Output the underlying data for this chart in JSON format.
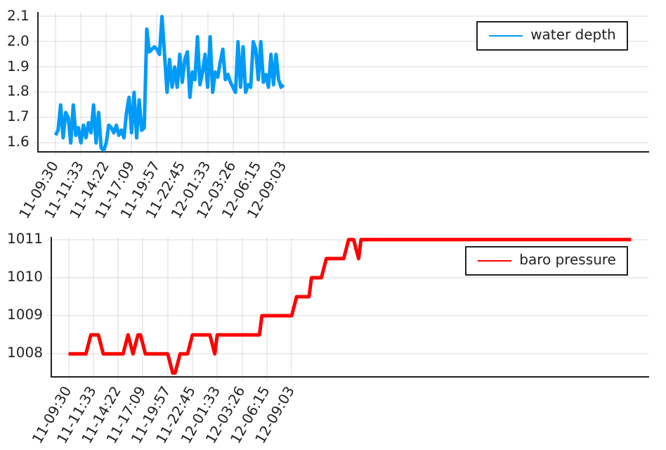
{
  "chart_data": [
    {
      "type": "line",
      "legend": "top right",
      "grid": true,
      "marker": "none",
      "line_style": "solid",
      "categories": [
        null,
        null,
        null,
        null,
        null,
        null,
        null,
        "11-09:30",
        null,
        null,
        null,
        null,
        null,
        null,
        null,
        null,
        null,
        "11-11:33",
        null,
        null,
        null,
        null,
        null,
        null,
        null,
        null,
        null,
        "11-14:22",
        null,
        null,
        null,
        null,
        null,
        null,
        null,
        null,
        null,
        "11-17:09",
        null,
        null,
        null,
        null,
        null,
        null,
        null,
        null,
        null,
        "11-19:57",
        null,
        null,
        null,
        null,
        null,
        null,
        null,
        null,
        null,
        "11-22:45",
        null,
        null,
        null,
        null,
        null,
        null,
        null,
        null,
        null,
        "12-01:33",
        null,
        null,
        null,
        null,
        null,
        null,
        null,
        null,
        null,
        "12-03:26",
        null,
        null,
        null,
        null,
        null,
        null,
        null,
        null,
        null,
        "12-06:15",
        null,
        null,
        null,
        null,
        null,
        null,
        null,
        null,
        null,
        "12-09:03",
        null,
        null,
        null,
        null,
        null,
        null,
        null,
        null,
        null,
        null,
        null,
        null,
        null,
        null,
        null,
        null,
        null,
        null,
        null,
        null,
        null,
        null,
        null,
        null,
        null,
        null,
        null,
        null,
        null,
        null,
        null,
        null,
        null,
        null,
        null,
        null,
        null,
        null,
        null,
        null,
        null,
        null,
        null,
        null,
        null,
        null,
        null,
        null,
        null,
        null,
        null,
        null,
        null,
        null,
        null,
        null,
        null,
        null,
        null,
        null,
        null,
        null,
        null,
        null,
        null,
        null,
        null,
        null,
        null,
        null,
        null,
        null,
        null,
        null,
        null,
        null,
        null,
        null,
        null,
        null,
        null,
        null,
        null,
        null,
        null,
        null,
        null,
        null,
        null,
        null,
        null,
        null,
        null,
        null,
        null,
        null,
        null,
        null,
        null,
        null,
        null,
        null,
        null,
        null,
        null,
        null,
        null,
        null,
        null,
        null,
        null,
        null,
        null,
        null,
        null,
        null,
        null,
        null,
        null,
        null,
        null,
        null,
        null,
        null,
        null,
        null,
        null,
        null,
        null,
        null,
        null,
        null,
        null,
        null,
        null,
        null,
        null,
        null,
        null,
        null,
        null,
        null,
        null,
        null
      ],
      "ylim": [
        1.565,
        2.115
      ],
      "yticks": [
        1.6,
        1.7,
        1.8,
        1.9,
        {
          "value": 2,
          "label": "2.0"
        },
        2.1
      ],
      "series": [
        {
          "name": "water depth",
          "color": "#009af9",
          "values": [
            null,
            null,
            null,
            null,
            null,
            null,
            null,
            1.63,
            1.65,
            1.75,
            1.62,
            1.72,
            1.7,
            1.6,
            1.75,
            1.63,
            1.66,
            1.6,
            1.67,
            1.62,
            1.68,
            1.64,
            1.75,
            1.6,
            1.72,
            1.58,
            1.57,
            1.6,
            1.67,
            1.66,
            1.64,
            1.67,
            1.63,
            1.65,
            1.62,
            1.72,
            1.78,
            1.64,
            1.8,
            1.62,
            1.77,
            1.65,
            1.66,
            2.05,
            1.96,
            1.97,
            1.98,
            1.97,
            1.95,
            2.1,
            1.95,
            1.8,
            1.93,
            1.82,
            1.9,
            1.82,
            1.95,
            1.84,
            1.93,
            1.96,
            1.78,
            1.88,
            1.85,
            2.02,
            1.83,
            1.88,
            1.95,
            1.82,
            2.02,
            1.8,
            1.88,
            1.86,
            1.92,
            1.97,
            1.85,
            1.87,
            1.84,
            1.82,
            1.8,
            2.0,
            1.82,
            1.98,
            1.8,
            1.83,
            1.82,
            2.0,
            1.97,
            1.85,
            2.0,
            1.84,
            1.87,
            1.82,
            1.95,
            1.83,
            1.95,
            1.85,
            1.82,
            1.83,
            null,
            null,
            null,
            null,
            null,
            null,
            null,
            null,
            null,
            null,
            null,
            null,
            null,
            null,
            null,
            null,
            null,
            null,
            null,
            null,
            null,
            null,
            null,
            null,
            null,
            null,
            null,
            null,
            null,
            null,
            null,
            null,
            null,
            null,
            null,
            null,
            null,
            null,
            null,
            null,
            null,
            null,
            null,
            null,
            null,
            null,
            null,
            null,
            null,
            null,
            null,
            null,
            null,
            null,
            null,
            null,
            null,
            null,
            null,
            null,
            null,
            null,
            null,
            null,
            null,
            null,
            null,
            null,
            null,
            null,
            null,
            null,
            null,
            null,
            null,
            null,
            null,
            null,
            null,
            null,
            null,
            null,
            null,
            null,
            null,
            null,
            null,
            null,
            null,
            null,
            null,
            null,
            null,
            null,
            null,
            null,
            null,
            null,
            null,
            null,
            null,
            null,
            null,
            null,
            null,
            null,
            null,
            null,
            null,
            null,
            null,
            null,
            null,
            null,
            null,
            null,
            null,
            null,
            null,
            null,
            null,
            null,
            null,
            null,
            null,
            null,
            null,
            null,
            null,
            null,
            null,
            null,
            null,
            null,
            null,
            null,
            null,
            null,
            null,
            null,
            null,
            null,
            null,
            null
          ]
        }
      ]
    },
    {
      "type": "line",
      "legend": "top right",
      "grid": true,
      "marker": "none",
      "line_style": "solid",
      "categories": [
        null,
        null,
        null,
        null,
        null,
        null,
        null,
        "11-09:30",
        null,
        null,
        null,
        null,
        null,
        null,
        null,
        null,
        null,
        "11-11:33",
        null,
        null,
        null,
        null,
        null,
        null,
        null,
        null,
        null,
        "11-14:22",
        null,
        null,
        null,
        null,
        null,
        null,
        null,
        null,
        null,
        "11-17:09",
        null,
        null,
        null,
        null,
        null,
        null,
        null,
        null,
        null,
        "11-19:57",
        null,
        null,
        null,
        null,
        null,
        null,
        null,
        null,
        null,
        "11-22:45",
        null,
        null,
        null,
        null,
        null,
        null,
        null,
        null,
        null,
        "12-01:33",
        null,
        null,
        null,
        null,
        null,
        null,
        null,
        null,
        null,
        "12-03:26",
        null,
        null,
        null,
        null,
        null,
        null,
        null,
        null,
        null,
        "12-06:15",
        null,
        null,
        null,
        null,
        null,
        null,
        null,
        null,
        null,
        "12-09:03",
        null,
        null,
        null,
        null,
        null,
        null,
        null,
        null,
        null,
        null,
        null,
        null,
        null,
        null,
        null,
        null,
        null,
        null,
        null,
        null,
        null,
        null,
        null,
        null,
        null,
        null,
        null,
        null,
        null,
        null,
        null,
        null,
        null,
        null,
        null,
        null,
        null,
        null,
        null,
        null,
        null,
        null,
        null,
        null,
        null,
        null,
        null,
        null,
        null,
        null,
        null,
        null,
        null,
        null,
        null,
        null,
        null,
        null,
        null,
        null,
        null,
        null,
        null,
        null,
        null,
        null,
        null,
        null,
        null,
        null,
        null,
        null,
        null,
        null,
        null,
        null,
        null,
        null,
        null,
        null,
        null,
        null,
        null,
        null,
        null,
        null,
        null,
        null,
        null,
        null,
        null,
        null,
        null,
        null,
        null,
        null,
        null,
        null,
        null,
        null,
        null,
        null,
        null,
        null,
        null,
        null,
        null,
        null,
        null,
        null,
        null,
        null,
        null,
        null,
        null,
        null,
        null,
        null,
        null,
        null,
        null,
        null,
        null,
        null,
        null,
        null,
        null,
        null,
        null,
        null,
        null,
        null,
        null,
        null,
        null,
        null,
        null,
        null,
        null,
        null,
        null,
        null,
        null,
        null
      ],
      "ylim": [
        1007.4,
        1011.05
      ],
      "yticks": [
        1008,
        1009,
        1010,
        1011
      ],
      "series": [
        {
          "name": "baro pressure",
          "color": "#ff0000",
          "values": [
            null,
            null,
            null,
            null,
            null,
            null,
            null,
            1008,
            1008,
            1008,
            1008,
            1008,
            1008,
            1008,
            1008,
            1008.25,
            1008.5,
            1008.5,
            1008.5,
            1008.5,
            1008.25,
            1008,
            1008,
            1008,
            1008,
            1008,
            1008,
            1008,
            1008,
            1008,
            1008.25,
            1008.5,
            1008.25,
            1008,
            1008.25,
            1008.5,
            1008.5,
            1008.25,
            1008,
            1008,
            1008,
            1008,
            1008,
            1008,
            1008,
            1008,
            1008,
            1008,
            1007.75,
            1007.5,
            1007.5,
            1007.75,
            1008,
            1008,
            1008,
            1008,
            1008.25,
            1008.5,
            1008.5,
            1008.5,
            1008.5,
            1008.5,
            1008.5,
            1008.5,
            1008.5,
            1008.25,
            1008,
            1008.5,
            1008.5,
            1008.5,
            1008.5,
            1008.5,
            1008.5,
            1008.5,
            1008.5,
            1008.5,
            1008.5,
            1008.5,
            1008.5,
            1008.5,
            1008.5,
            1008.5,
            1008.5,
            1008.5,
            1008.5,
            1009,
            1009,
            1009,
            1009,
            1009,
            1009,
            1009,
            1009,
            1009,
            1009,
            1009,
            1009,
            1009,
            1009.25,
            1009.5,
            1009.5,
            1009.5,
            1009.5,
            1009.5,
            1009.5,
            1010,
            1010,
            1010,
            1010,
            1010,
            1010.25,
            1010.5,
            1010.5,
            1010.5,
            1010.5,
            1010.5,
            1010.5,
            1010.5,
            1010.5,
            1010.75,
            1011,
            1011,
            1011,
            1010.75,
            1010.5,
            1011,
            1011,
            1011,
            1011,
            1011,
            1011,
            1011,
            1011,
            1011,
            1011,
            1011,
            1011,
            1011,
            1011,
            1011,
            1011,
            1011,
            1011,
            1011,
            1011,
            1011,
            1011,
            1011,
            1011,
            1011,
            1011,
            1011,
            1011,
            1011,
            1011,
            1011,
            1011,
            1011,
            1011,
            1011,
            1011,
            1011,
            1011,
            1011,
            1011,
            1011,
            1011,
            1011,
            1011,
            1011,
            1011,
            1011,
            1011,
            1011,
            1011,
            1011,
            1011,
            1011,
            1011,
            1011,
            1011,
            1011,
            1011,
            1011,
            1011,
            1011,
            1011,
            1011,
            1011,
            1011,
            1011,
            1011,
            1011,
            1011,
            1011,
            1011,
            1011,
            1011,
            1011,
            1011,
            1011,
            1011,
            1011,
            1011,
            1011,
            1011,
            1011,
            1011,
            1011,
            1011,
            1011,
            1011,
            1011,
            1011,
            1011,
            1011,
            1011,
            1011,
            1011,
            1011,
            1011,
            1011,
            1011,
            1011,
            1011,
            1011,
            1011,
            1011,
            1011,
            1011,
            1011,
            1011,
            1011,
            1011,
            1011,
            null,
            null,
            null,
            null,
            null,
            null,
            null
          ]
        }
      ]
    }
  ]
}
